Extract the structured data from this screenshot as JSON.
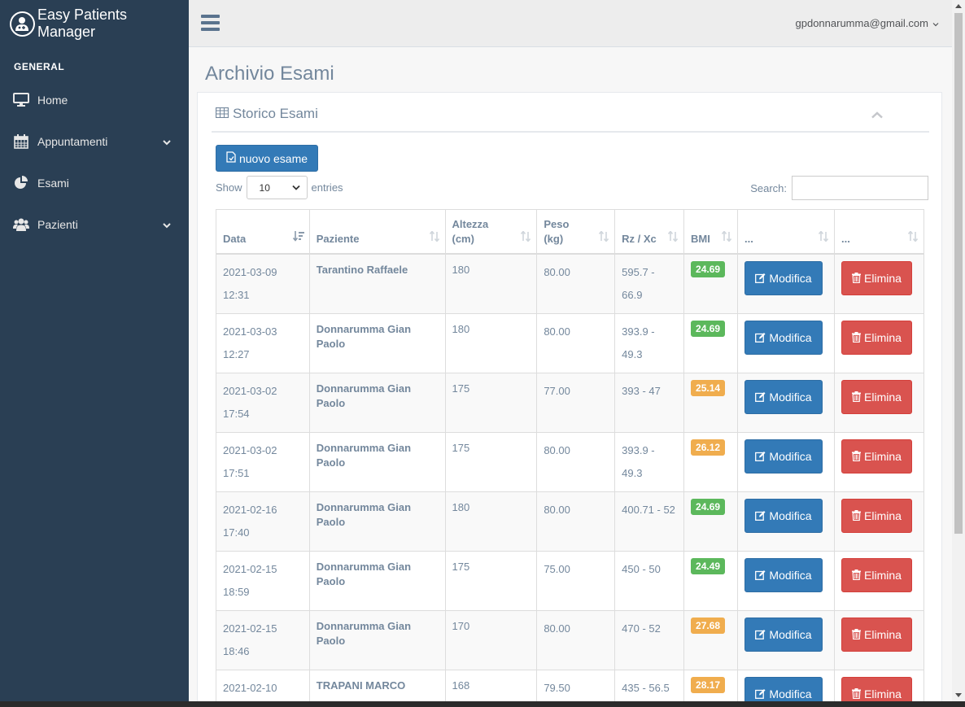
{
  "app": {
    "title": "Easy Patients Manager"
  },
  "sidebar": {
    "section_title": "GENERAL",
    "items": [
      {
        "label": "Home",
        "icon": "desktop-icon",
        "has_submenu": false
      },
      {
        "label": "Appuntamenti",
        "icon": "calendar-icon",
        "has_submenu": true
      },
      {
        "label": "Esami",
        "icon": "pie-chart-icon",
        "has_submenu": false
      },
      {
        "label": "Pazienti",
        "icon": "users-icon",
        "has_submenu": true
      }
    ]
  },
  "topbar": {
    "user_email": "gpdonnarumma@gmail.com"
  },
  "page": {
    "title": "Archivio Esami"
  },
  "panel": {
    "title": "Storico Esami",
    "new_button": "nuovo esame",
    "show_label": "Show",
    "entries_value": "10",
    "entries_label": "entries",
    "search_label": "Search:",
    "search_value": ""
  },
  "table": {
    "headers": [
      "Data",
      "Paziente",
      "Altezza (cm)",
      "Peso (kg)",
      "Rz / Xc",
      "BMI",
      "...",
      "..."
    ],
    "header_lines": {
      "altezza": [
        "Altezza",
        "(cm)"
      ],
      "peso": [
        "Peso",
        "(kg)"
      ]
    },
    "edit_label": "Modifica",
    "delete_label": "Elimina",
    "rows": [
      {
        "date": "2021-03-09",
        "time": "12:31",
        "patient": "Tarantino Raffaele",
        "height": "180",
        "weight": "80.00",
        "rz_xc": "595.7 - 66.9",
        "rz_lines": [
          "595.7 -",
          "66.9"
        ],
        "bmi": "24.69",
        "bmi_status": "normal"
      },
      {
        "date": "2021-03-03",
        "time": "12:27",
        "patient": "Donnarumma Gian Paolo",
        "height": "180",
        "weight": "80.00",
        "rz_xc": "393.9 - 49.3",
        "rz_lines": [
          "393.9 -",
          "49.3"
        ],
        "bmi": "24.69",
        "bmi_status": "normal"
      },
      {
        "date": "2021-03-02",
        "time": "17:54",
        "patient": "Donnarumma Gian Paolo",
        "height": "175",
        "weight": "77.00",
        "rz_xc": "393 - 47",
        "rz_lines": [
          "393 - 47"
        ],
        "bmi": "25.14",
        "bmi_status": "overweight"
      },
      {
        "date": "2021-03-02",
        "time": "17:51",
        "patient": "Donnarumma Gian Paolo",
        "height": "175",
        "weight": "80.00",
        "rz_xc": "393.9 - 49.3",
        "rz_lines": [
          "393.9 -",
          "49.3"
        ],
        "bmi": "26.12",
        "bmi_status": "overweight"
      },
      {
        "date": "2021-02-16",
        "time": "17:40",
        "patient": "Donnarumma Gian Paolo",
        "height": "180",
        "weight": "80.00",
        "rz_xc": "400.71 - 52",
        "rz_lines": [
          "400.71 - 52"
        ],
        "bmi": "24.69",
        "bmi_status": "normal"
      },
      {
        "date": "2021-02-15",
        "time": "18:59",
        "patient": "Donnarumma Gian Paolo",
        "height": "175",
        "weight": "75.00",
        "rz_xc": "450 - 50",
        "rz_lines": [
          "450 - 50"
        ],
        "bmi": "24.49",
        "bmi_status": "normal"
      },
      {
        "date": "2021-02-15",
        "time": "18:46",
        "patient": "Donnarumma Gian Paolo",
        "height": "170",
        "weight": "80.00",
        "rz_xc": "470 - 52",
        "rz_lines": [
          "470 - 52"
        ],
        "bmi": "27.68",
        "bmi_status": "overweight"
      },
      {
        "date": "2021-02-10",
        "time": "",
        "patient": "TRAPANI MARCO",
        "height": "168",
        "weight": "79.50",
        "rz_xc": "435 - 56.5",
        "rz_lines": [
          "435 - 56.5"
        ],
        "bmi": "28.17",
        "bmi_status": "overweight"
      }
    ]
  },
  "colors": {
    "sidebar_bg": "#2A3F54",
    "primary": "#337AB7",
    "danger": "#D9534F",
    "bmi_normal": "#5CB85C",
    "bmi_overweight": "#F0AD4E"
  }
}
